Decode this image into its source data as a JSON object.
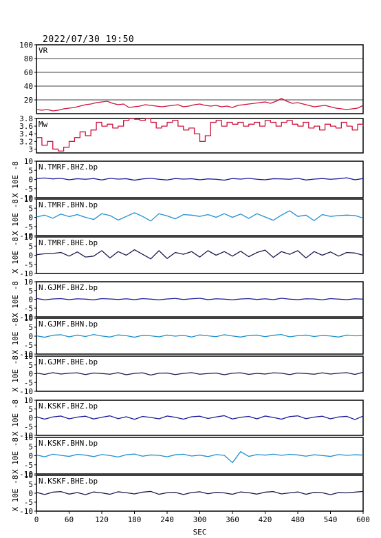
{
  "header": {
    "title": "2022/07/30 19:50"
  },
  "chart_data": {
    "type": "line",
    "xlabel": "SEC",
    "xlim": [
      0,
      600
    ],
    "xticks": [
      0,
      60,
      120,
      180,
      240,
      300,
      360,
      420,
      480,
      540,
      600
    ],
    "panels": [
      {
        "name": "VR",
        "kind": "vr",
        "color": "#d0103a",
        "ylim": [
          0,
          100
        ],
        "yticks": [
          100,
          80,
          60,
          40,
          20
        ],
        "grid_y": [
          20,
          40,
          60,
          80
        ],
        "x": [
          0,
          10,
          20,
          30,
          40,
          50,
          60,
          70,
          80,
          90,
          100,
          110,
          120,
          130,
          140,
          150,
          160,
          170,
          180,
          190,
          200,
          210,
          220,
          230,
          240,
          250,
          260,
          270,
          280,
          290,
          300,
          310,
          320,
          330,
          340,
          350,
          360,
          370,
          380,
          390,
          400,
          410,
          420,
          430,
          440,
          450,
          460,
          470,
          480,
          490,
          500,
          510,
          520,
          530,
          540,
          550,
          560,
          570,
          580,
          590,
          600
        ],
        "values": [
          6,
          5,
          6,
          4,
          5,
          7,
          8,
          9,
          11,
          13,
          14,
          16,
          17,
          18,
          15,
          13,
          14,
          9,
          10,
          11,
          13,
          12,
          11,
          10,
          11,
          12,
          13,
          10,
          11,
          13,
          14,
          12,
          11,
          12,
          10,
          11,
          9,
          12,
          13,
          14,
          15,
          16,
          17,
          15,
          18,
          22,
          18,
          15,
          16,
          14,
          12,
          10,
          11,
          12,
          10,
          8,
          7,
          6,
          7,
          8,
          12
        ]
      },
      {
        "name": "Mw",
        "kind": "mw",
        "color": "#d0103a",
        "ylim": [
          2.9,
          3.8
        ],
        "yticks": [
          3.8,
          3.6,
          3.4,
          3.2,
          3.0
        ],
        "x": [
          0,
          10,
          20,
          30,
          40,
          50,
          60,
          70,
          80,
          90,
          100,
          110,
          120,
          130,
          140,
          150,
          160,
          170,
          180,
          190,
          200,
          210,
          220,
          230,
          240,
          250,
          260,
          270,
          280,
          290,
          300,
          310,
          320,
          330,
          340,
          350,
          360,
          370,
          380,
          390,
          400,
          410,
          420,
          430,
          440,
          450,
          460,
          470,
          480,
          490,
          500,
          510,
          520,
          530,
          540,
          550,
          560,
          570,
          580,
          590,
          600
        ],
        "values": [
          3.3,
          3.1,
          3.2,
          3.0,
          2.95,
          3.05,
          3.2,
          3.3,
          3.45,
          3.35,
          3.5,
          3.7,
          3.6,
          3.65,
          3.55,
          3.6,
          3.75,
          3.8,
          3.78,
          3.75,
          3.8,
          3.7,
          3.55,
          3.6,
          3.7,
          3.75,
          3.6,
          3.5,
          3.55,
          3.4,
          3.2,
          3.35,
          3.7,
          3.75,
          3.6,
          3.7,
          3.65,
          3.7,
          3.6,
          3.65,
          3.7,
          3.6,
          3.75,
          3.7,
          3.6,
          3.7,
          3.75,
          3.65,
          3.6,
          3.7,
          3.55,
          3.6,
          3.5,
          3.65,
          3.6,
          3.55,
          3.7,
          3.6,
          3.5,
          3.65,
          3.6
        ]
      },
      {
        "name": "N.TMRF.BHZ.bp",
        "kind": "wave",
        "color": "#1a1a9a",
        "ylabel": "X 10E -8",
        "ylim": [
          -10,
          10
        ],
        "yticks": [
          10,
          5,
          0,
          -5,
          -10
        ],
        "x": [
          0,
          15,
          30,
          45,
          60,
          75,
          90,
          105,
          120,
          135,
          150,
          165,
          180,
          195,
          210,
          225,
          240,
          255,
          270,
          285,
          300,
          315,
          330,
          345,
          360,
          375,
          390,
          405,
          420,
          435,
          450,
          465,
          480,
          495,
          510,
          525,
          540,
          555,
          570,
          585,
          600
        ],
        "values": [
          0.5,
          0.8,
          0.3,
          0.6,
          -0.2,
          0.4,
          0.1,
          0.5,
          -0.3,
          0.6,
          0.2,
          0.4,
          -0.4,
          0.3,
          0.6,
          0.1,
          -0.3,
          0.5,
          0.2,
          0.4,
          -0.2,
          0.3,
          0.1,
          -0.4,
          0.5,
          0.2,
          0.6,
          0.1,
          -0.2,
          0.4,
          0.3,
          0.1,
          0.6,
          -0.3,
          0.2,
          0.5,
          0.1,
          0.4,
          0.9,
          -0.2,
          0.5
        ]
      },
      {
        "name": "N.TMRF.BHN.bp",
        "kind": "wave",
        "color": "#1e8fd0",
        "ylabel": "X 10E -8",
        "ylim": [
          -10,
          10
        ],
        "yticks": [
          10,
          5,
          0,
          -5,
          -10
        ],
        "x": [
          0,
          15,
          30,
          45,
          60,
          75,
          90,
          105,
          120,
          135,
          150,
          165,
          180,
          195,
          210,
          225,
          240,
          255,
          270,
          285,
          300,
          315,
          330,
          345,
          360,
          375,
          390,
          405,
          420,
          435,
          450,
          465,
          480,
          495,
          510,
          525,
          540,
          555,
          570,
          585,
          600
        ],
        "values": [
          0.2,
          1.2,
          -0.5,
          1.8,
          0.4,
          1.5,
          0.0,
          -1.2,
          2.0,
          1.0,
          -1.5,
          0.5,
          2.5,
          0.5,
          -2.0,
          2.0,
          0.8,
          -0.8,
          1.5,
          1.2,
          0.5,
          1.5,
          0.0,
          2.0,
          0.0,
          1.8,
          -0.6,
          2.0,
          0.2,
          -1.6,
          1.2,
          3.6,
          0.5,
          1.2,
          -1.8,
          1.5,
          0.5,
          1.0,
          1.2,
          1.0,
          -0.4
        ]
      },
      {
        "name": "N.TMRF.BHE.bp",
        "kind": "wave",
        "color": "#1a1a50",
        "ylabel": "X 10E -8",
        "ylim": [
          -10,
          10
        ],
        "yticks": [
          10,
          5,
          0,
          -5,
          -10
        ],
        "x": [
          0,
          15,
          30,
          45,
          60,
          75,
          90,
          105,
          120,
          135,
          150,
          165,
          180,
          195,
          210,
          225,
          240,
          255,
          270,
          285,
          300,
          315,
          330,
          345,
          360,
          375,
          390,
          405,
          420,
          435,
          450,
          465,
          480,
          495,
          510,
          525,
          540,
          555,
          570,
          585,
          600
        ],
        "values": [
          0.3,
          0.8,
          1.0,
          1.5,
          -0.5,
          1.8,
          -1.0,
          -0.5,
          2.5,
          -1.5,
          2.0,
          0.0,
          3.0,
          0.5,
          -2.0,
          2.5,
          -1.8,
          1.5,
          0.5,
          2.0,
          -1.0,
          2.5,
          0.0,
          2.0,
          -0.5,
          2.2,
          -0.8,
          1.5,
          2.8,
          -1.2,
          2.0,
          0.5,
          2.5,
          -1.5,
          2.0,
          0.0,
          1.8,
          -0.5,
          1.5,
          1.2,
          0.0
        ]
      },
      {
        "name": "N.GJMF.BHZ.bp",
        "kind": "wave",
        "color": "#1a1a9a",
        "ylabel": "X 10E -8",
        "ylim": [
          -10,
          10
        ],
        "yticks": [
          10,
          5,
          0,
          -5,
          -10
        ],
        "x": [
          0,
          15,
          30,
          45,
          60,
          75,
          90,
          105,
          120,
          135,
          150,
          165,
          180,
          195,
          210,
          225,
          240,
          255,
          270,
          285,
          300,
          315,
          330,
          345,
          360,
          375,
          390,
          405,
          420,
          435,
          450,
          465,
          480,
          495,
          510,
          525,
          540,
          555,
          570,
          585,
          600
        ],
        "values": [
          0.5,
          -0.3,
          0.2,
          0.4,
          -0.2,
          0.3,
          0.1,
          -0.3,
          0.4,
          0.2,
          -0.1,
          0.3,
          -0.2,
          0.4,
          0.1,
          -0.3,
          0.2,
          0.5,
          -0.1,
          0.3,
          0.6,
          -0.2,
          0.3,
          0.1,
          -0.3,
          0.2,
          0.4,
          -0.1,
          0.3,
          -0.2,
          0.6,
          0.1,
          -0.2,
          0.3,
          0.2,
          -0.3,
          0.4,
          0.1,
          -0.2,
          0.3,
          0.1
        ]
      },
      {
        "name": "N.GJMF.BHN.bp",
        "kind": "wave",
        "color": "#1e8fd0",
        "ylabel": "X 10E -8",
        "ylim": [
          -10,
          10
        ],
        "yticks": [
          10,
          5,
          0,
          -5,
          -10
        ],
        "x": [
          0,
          15,
          30,
          45,
          60,
          75,
          90,
          105,
          120,
          135,
          150,
          165,
          180,
          195,
          210,
          225,
          240,
          255,
          270,
          285,
          300,
          315,
          330,
          345,
          360,
          375,
          390,
          405,
          420,
          435,
          450,
          465,
          480,
          495,
          510,
          525,
          540,
          555,
          570,
          585,
          600
        ],
        "values": [
          0.2,
          -0.6,
          0.5,
          0.8,
          -0.4,
          0.6,
          -0.2,
          0.9,
          0.1,
          -0.5,
          0.7,
          0.3,
          -0.6,
          0.5,
          0.2,
          -0.4,
          0.6,
          0.0,
          0.5,
          -0.5,
          0.7,
          0.2,
          -0.3,
          0.8,
          0.1,
          -0.5,
          0.4,
          0.6,
          -0.3,
          0.5,
          0.9,
          -0.4,
          0.3,
          0.6,
          -0.2,
          0.4,
          0.1,
          -0.5,
          0.6,
          0.2,
          0.3
        ]
      },
      {
        "name": "N.GJMF.BHE.bp",
        "kind": "wave",
        "color": "#1a1a50",
        "ylabel": "X 10E -8",
        "ylim": [
          -10,
          10
        ],
        "yticks": [
          10,
          5,
          0,
          -5,
          -10
        ],
        "x": [
          0,
          15,
          30,
          45,
          60,
          75,
          90,
          105,
          120,
          135,
          150,
          165,
          180,
          195,
          210,
          225,
          240,
          255,
          270,
          285,
          300,
          315,
          330,
          345,
          360,
          375,
          390,
          405,
          420,
          435,
          450,
          465,
          480,
          495,
          510,
          525,
          540,
          555,
          570,
          585,
          600
        ],
        "values": [
          0.4,
          -0.4,
          0.6,
          -0.2,
          0.3,
          0.5,
          -0.5,
          0.4,
          0.1,
          -0.3,
          0.6,
          -0.6,
          0.2,
          0.5,
          -0.8,
          0.3,
          0.4,
          -0.5,
          0.2,
          0.6,
          -0.3,
          0.1,
          0.4,
          -0.6,
          0.3,
          0.5,
          -0.4,
          0.2,
          -0.2,
          0.5,
          0.3,
          -0.5,
          0.4,
          0.1,
          -0.3,
          0.5,
          -0.2,
          0.3,
          0.6,
          -0.4,
          0.8
        ]
      },
      {
        "name": "N.KSKF.BHZ.bp",
        "kind": "wave",
        "color": "#1a1a9a",
        "ylabel": "X 10E -8",
        "ylim": [
          -10,
          10
        ],
        "yticks": [
          10,
          5,
          0,
          -5,
          -10
        ],
        "x": [
          0,
          15,
          30,
          45,
          60,
          75,
          90,
          105,
          120,
          135,
          150,
          165,
          180,
          195,
          210,
          225,
          240,
          255,
          270,
          285,
          300,
          315,
          330,
          345,
          360,
          375,
          390,
          405,
          420,
          435,
          450,
          465,
          480,
          495,
          510,
          525,
          540,
          555,
          570,
          585,
          600
        ],
        "values": [
          0.6,
          -0.8,
          0.5,
          1.0,
          -0.6,
          0.4,
          0.9,
          -0.7,
          0.3,
          1.1,
          -0.5,
          0.6,
          -0.9,
          0.8,
          0.2,
          -0.6,
          1.0,
          0.3,
          -0.8,
          0.6,
          0.9,
          -0.4,
          0.5,
          1.2,
          -0.7,
          0.3,
          0.8,
          -0.6,
          1.0,
          0.2,
          -0.8,
          0.7,
          1.1,
          -0.5,
          0.4,
          0.9,
          -0.6,
          0.5,
          0.8,
          -1.0,
          1.0
        ]
      },
      {
        "name": "N.KSKF.BHN.bp",
        "kind": "wave",
        "color": "#1e8fd0",
        "ylabel": "X 10E -8",
        "ylim": [
          -10,
          10
        ],
        "yticks": [
          10,
          5,
          0,
          -5,
          -10
        ],
        "x": [
          0,
          15,
          30,
          45,
          60,
          75,
          90,
          105,
          120,
          135,
          150,
          165,
          180,
          195,
          210,
          225,
          240,
          255,
          270,
          285,
          300,
          315,
          330,
          345,
          360,
          375,
          390,
          405,
          420,
          435,
          450,
          465,
          480,
          495,
          510,
          525,
          540,
          555,
          570,
          585,
          600
        ],
        "values": [
          0.4,
          -0.6,
          0.8,
          0.2,
          -0.4,
          0.7,
          0.3,
          -0.5,
          0.6,
          0.1,
          -0.7,
          0.5,
          0.9,
          -0.3,
          0.4,
          0.2,
          -0.6,
          0.5,
          0.8,
          -0.2,
          0.3,
          -0.5,
          0.6,
          0.2,
          -3.8,
          2.2,
          -0.4,
          0.6,
          0.3,
          0.8,
          0.2,
          0.7,
          0.4,
          -0.3,
          0.5,
          0.1,
          -0.4,
          0.6,
          0.2,
          0.5,
          0.3
        ]
      },
      {
        "name": "N.KSKF.BHE.bp",
        "kind": "wave",
        "color": "#1a1a50",
        "ylabel": "X 10E -8",
        "ylim": [
          -10,
          10
        ],
        "yticks": [
          10,
          5,
          0,
          -5,
          -10
        ],
        "x": [
          0,
          15,
          30,
          45,
          60,
          75,
          90,
          105,
          120,
          135,
          150,
          165,
          180,
          195,
          210,
          225,
          240,
          255,
          270,
          285,
          300,
          315,
          330,
          345,
          360,
          375,
          390,
          405,
          420,
          435,
          450,
          465,
          480,
          495,
          510,
          525,
          540,
          555,
          570,
          585,
          600
        ],
        "values": [
          0.5,
          -0.7,
          0.6,
          0.9,
          -0.5,
          0.4,
          -0.8,
          0.7,
          0.2,
          -0.6,
          0.8,
          0.3,
          -0.4,
          0.6,
          1.0,
          -0.6,
          0.3,
          0.5,
          -0.7,
          0.4,
          0.8,
          -0.3,
          0.5,
          0.2,
          -0.6,
          0.7,
          0.3,
          -0.5,
          0.6,
          0.9,
          -0.4,
          0.2,
          0.7,
          -0.6,
          0.5,
          0.3,
          -0.8,
          0.4,
          0.2,
          0.6,
          1.0
        ]
      }
    ]
  }
}
